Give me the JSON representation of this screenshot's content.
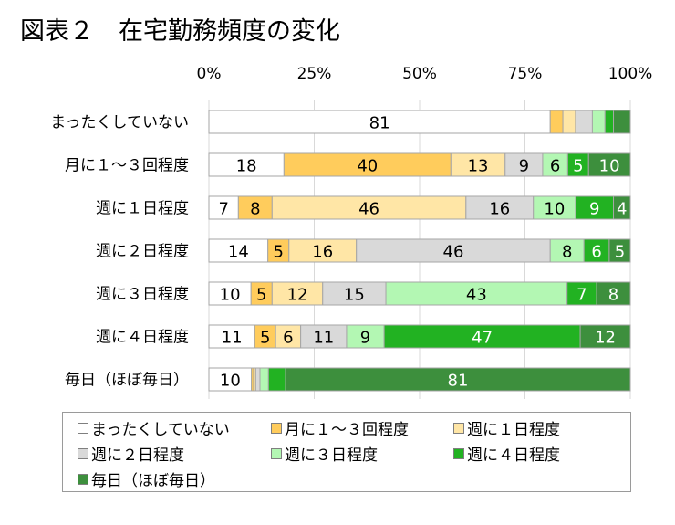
{
  "title": "図表２　在宅勤務頻度の変化",
  "chart_data": {
    "type": "bar",
    "orientation": "horizontal",
    "stacked": true,
    "percent_stacked": true,
    "xlim": [
      0,
      100
    ],
    "x_ticks": [
      "0%",
      "25%",
      "50%",
      "75%",
      "100%"
    ],
    "x_axis_position": "top",
    "grid": true,
    "legend_position": "bottom",
    "categories": [
      "まったくしていない",
      "月に１～３回程度",
      "週に１日程度",
      "週に２日程度",
      "週に３日程度",
      "週に４日程度",
      "毎日（ほぼ毎日）"
    ],
    "series": [
      {
        "name": "まったくしていない",
        "color": "#ffffff",
        "values": [
          81,
          18,
          7,
          14,
          10,
          11,
          10
        ],
        "labels": [
          "81",
          "18",
          "7",
          "14",
          "10",
          "11",
          "10"
        ]
      },
      {
        "name": "月に１～３回程度",
        "color": "#ffcc5c",
        "values": [
          3,
          40,
          8,
          5,
          5,
          5,
          0.5
        ],
        "labels": [
          "",
          "40",
          "8",
          "5",
          "5",
          "5",
          ""
        ]
      },
      {
        "name": "週に１日程度",
        "color": "#ffe6a6",
        "values": [
          3,
          13,
          46,
          16,
          12,
          6,
          0.5
        ],
        "labels": [
          "",
          "13",
          "46",
          "16",
          "12",
          "6",
          ""
        ]
      },
      {
        "name": "週に２日程度",
        "color": "#d9d9d9",
        "values": [
          4,
          9,
          16,
          46,
          15,
          11,
          1
        ],
        "labels": [
          "",
          "9",
          "16",
          "46",
          "15",
          "11",
          ""
        ]
      },
      {
        "name": "週に３日程度",
        "color": "#b3f7b3",
        "values": [
          3,
          6,
          10,
          8,
          43,
          9,
          2
        ],
        "labels": [
          "",
          "6",
          "10",
          "8",
          "43",
          "9",
          ""
        ]
      },
      {
        "name": "週に４日程度",
        "color": "#22b222",
        "values": [
          2,
          5,
          9,
          6,
          7,
          47,
          4
        ],
        "labels": [
          "",
          "5",
          "9",
          "6",
          "7",
          "47",
          ""
        ]
      },
      {
        "name": "毎日（ほぼ毎日）",
        "color": "#3d8f3d",
        "values": [
          4,
          10,
          4,
          5,
          8,
          12,
          81
        ],
        "labels": [
          "",
          "10",
          "4",
          "5",
          "8",
          "12",
          "81"
        ]
      }
    ]
  }
}
